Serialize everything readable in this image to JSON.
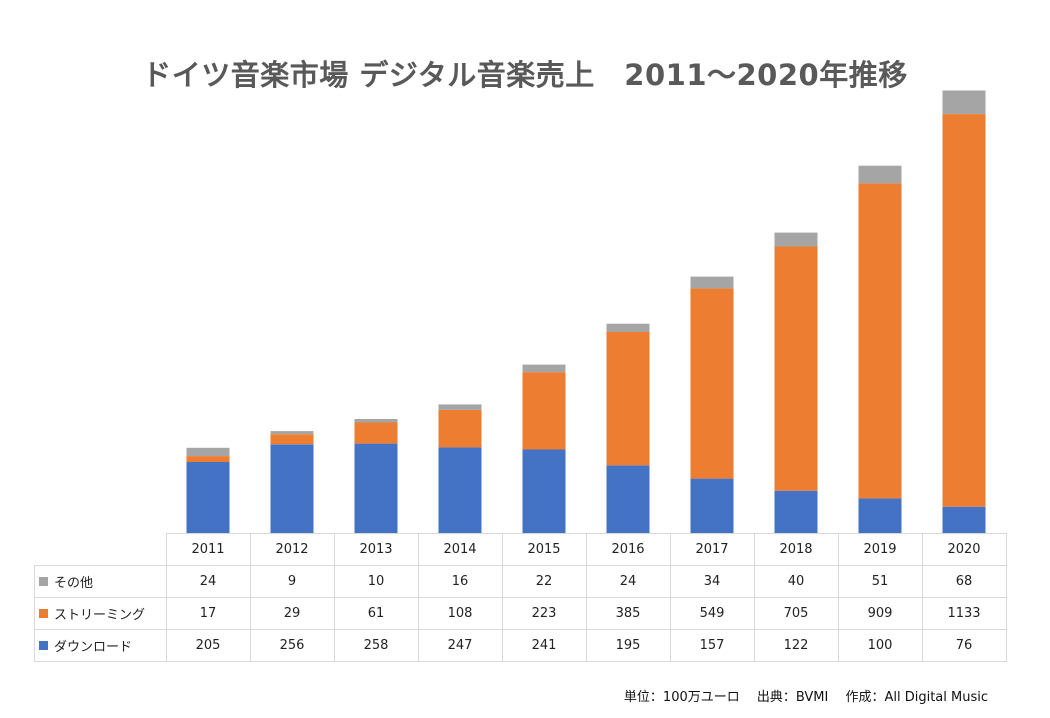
{
  "chart_data": {
    "type": "bar",
    "stacked": true,
    "title": "ドイツ音楽市場 デジタル音楽売上　2011〜2020年推移",
    "categories": [
      "2011",
      "2012",
      "2013",
      "2014",
      "2015",
      "2016",
      "2017",
      "2018",
      "2019",
      "2020"
    ],
    "series": [
      {
        "name": "その他",
        "color": "#a5a5a5",
        "values": [
          24,
          9,
          10,
          16,
          22,
          24,
          34,
          40,
          51,
          68
        ]
      },
      {
        "name": "ストリーミング",
        "color": "#ed7d31",
        "values": [
          17,
          29,
          61,
          108,
          223,
          385,
          549,
          705,
          909,
          1133
        ]
      },
      {
        "name": "ダウンロード",
        "color": "#4472c4",
        "values": [
          205,
          256,
          258,
          247,
          241,
          195,
          157,
          122,
          100,
          76
        ]
      }
    ],
    "stack_order_bottom_to_top": [
      "ダウンロード",
      "ストリーミング",
      "その他"
    ],
    "ylim": [
      0,
      1300
    ],
    "grid": false,
    "legend": "data-table",
    "note": "単位：100万ユーロ　 出典：BVMI　 作成：All Digital Music"
  }
}
